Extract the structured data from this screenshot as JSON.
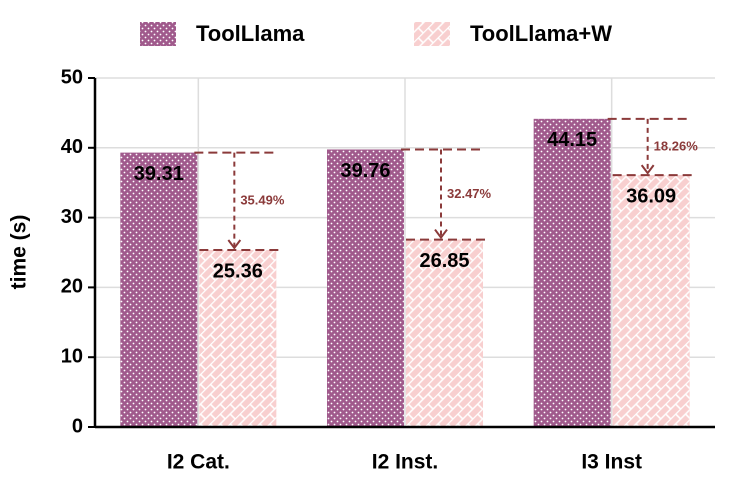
{
  "chart_data": {
    "type": "bar",
    "ylabel": "time (s)",
    "categories": [
      "I2 Cat.",
      "I2 Inst.",
      "I3 Inst"
    ],
    "series": [
      {
        "name": "ToolLlama",
        "color": "#a05a8c",
        "values": [
          39.31,
          39.76,
          44.15
        ]
      },
      {
        "name": "ToolLlama+W",
        "color": "#f8cfcf",
        "values": [
          25.36,
          26.85,
          36.09
        ]
      }
    ],
    "annotations": [
      "35.49%",
      "32.47%",
      "18.26%"
    ],
    "annotation_color": "#8b3a3a",
    "ylim": [
      0,
      50
    ],
    "yticks": [
      0,
      10,
      20,
      30,
      40,
      50
    ],
    "grid": true,
    "legend": "top"
  }
}
